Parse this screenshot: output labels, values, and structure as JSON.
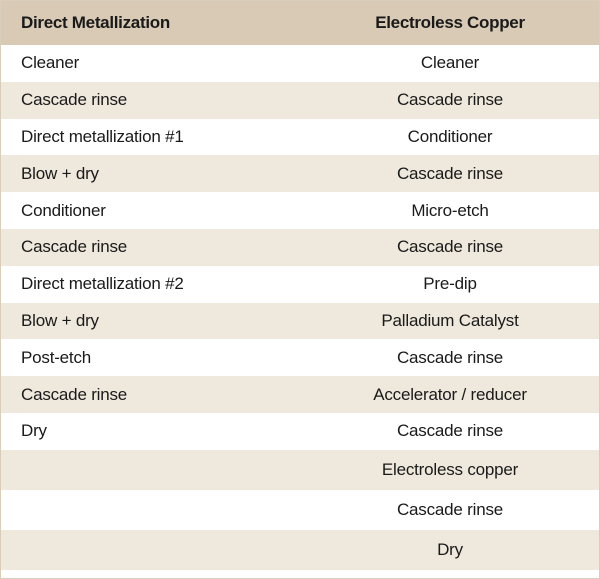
{
  "table": {
    "headers": [
      "Direct Metallization",
      "Electroless Copper"
    ],
    "rows": [
      [
        "Cleaner",
        "Cleaner"
      ],
      [
        "Cascade rinse",
        "Cascade rinse"
      ],
      [
        "Direct metallization #1",
        "Conditioner"
      ],
      [
        "Blow + dry",
        "Cascade rinse"
      ],
      [
        "Conditioner",
        "Micro-etch"
      ],
      [
        "Cascade rinse",
        "Cascade rinse"
      ],
      [
        "Direct metallization #2",
        "Pre-dip"
      ],
      [
        "Blow + dry",
        "Palladium Catalyst"
      ],
      [
        "Post-etch",
        "Cascade rinse"
      ],
      [
        "Cascade rinse",
        "Accelerator / reducer"
      ],
      [
        "Dry",
        "Cascade rinse"
      ],
      [
        "",
        "Electroless copper"
      ],
      [
        "",
        "Cascade rinse"
      ],
      [
        "",
        "Dry"
      ]
    ]
  },
  "colors": {
    "header_bg": "#d8cab4",
    "stripe_bg": "#efe8dc",
    "border": "#d9cdbb"
  }
}
